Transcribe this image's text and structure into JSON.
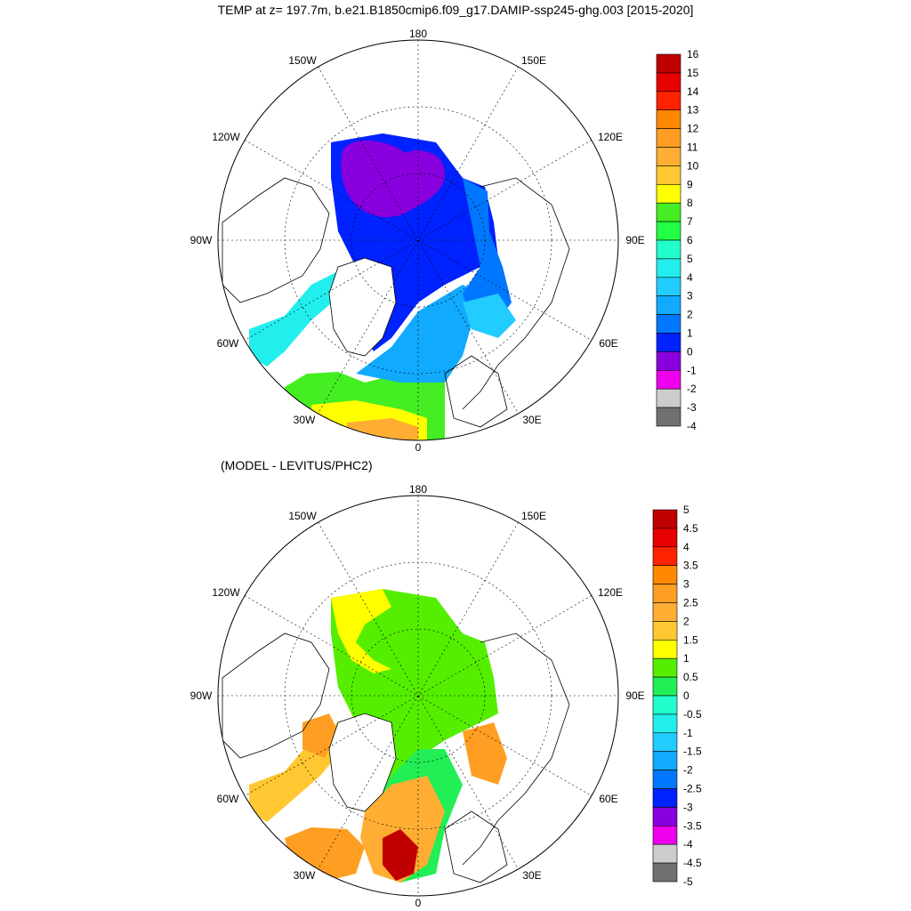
{
  "title": "TEMP at z= 197.7m, b.e21.B1850cmip6.f09_g17.DAMIP-ssp245-ghg.003 [2015-2020]",
  "subtitle": "(MODEL - LEVITUS/PHC2)",
  "grid_labels": [
    "180",
    "150E",
    "120E",
    "90E",
    "60E",
    "30E",
    "0",
    "30W",
    "60W",
    "90W",
    "120W",
    "150W"
  ],
  "top_colorbar": {
    "labels": [
      "16",
      "15",
      "14",
      "13",
      "12",
      "11",
      "10",
      "9",
      "8",
      "7",
      "6",
      "5",
      "4",
      "3",
      "2",
      "1",
      "0",
      "-1",
      "-2",
      "-3",
      "-4"
    ],
    "colors": [
      "#c00000",
      "#e60000",
      "#ff2200",
      "#ff8800",
      "#ff9e22",
      "#ffae33",
      "#ffc833",
      "#ffff00",
      "#44ee22",
      "#22ff44",
      "#22ffcc",
      "#22eeee",
      "#22ccff",
      "#11aaff",
      "#0077ff",
      "#0022ff",
      "#8800dd",
      "#ee00ee",
      "#cccccc",
      "#707070"
    ]
  },
  "bottom_colorbar": {
    "labels": [
      "5",
      "4.5",
      "4",
      "3.5",
      "3",
      "2.5",
      "2",
      "1.5",
      "1",
      "0.5",
      "0",
      "-0.5",
      "-1",
      "-1.5",
      "-2",
      "-2.5",
      "-3",
      "-3.5",
      "-4",
      "-4.5",
      "-5"
    ],
    "colors": [
      "#c00000",
      "#e60000",
      "#ff2200",
      "#ff8800",
      "#ff9e22",
      "#ffae33",
      "#ffc833",
      "#ffff00",
      "#55ee00",
      "#22ee55",
      "#22ffcc",
      "#22eeee",
      "#22ccff",
      "#11aaff",
      "#0077ff",
      "#0022ff",
      "#8800dd",
      "#ee00ee",
      "#cccccc",
      "#707070"
    ]
  }
}
